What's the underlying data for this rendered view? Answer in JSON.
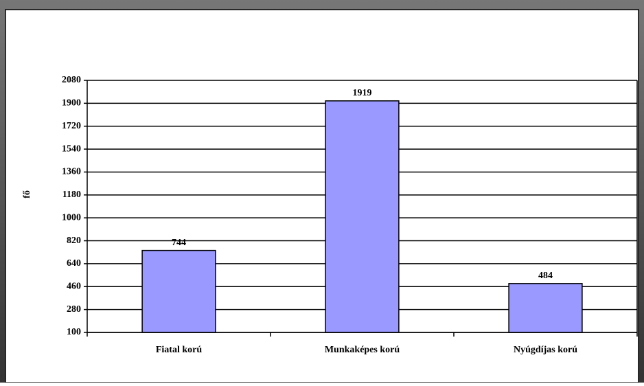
{
  "chart_data": {
    "type": "bar",
    "y_label": "fő",
    "categories": [
      "Fiatal korú",
      "Munkaképes korú",
      "Nyúgdíjas korú"
    ],
    "values": [
      744,
      1919,
      484
    ],
    "color": "#9999ff",
    "ylim": [
      100,
      2080
    ],
    "yticks": [
      100,
      280,
      460,
      640,
      820,
      1000,
      1180,
      1360,
      1540,
      1720,
      1900,
      2080
    ],
    "grid": true
  }
}
